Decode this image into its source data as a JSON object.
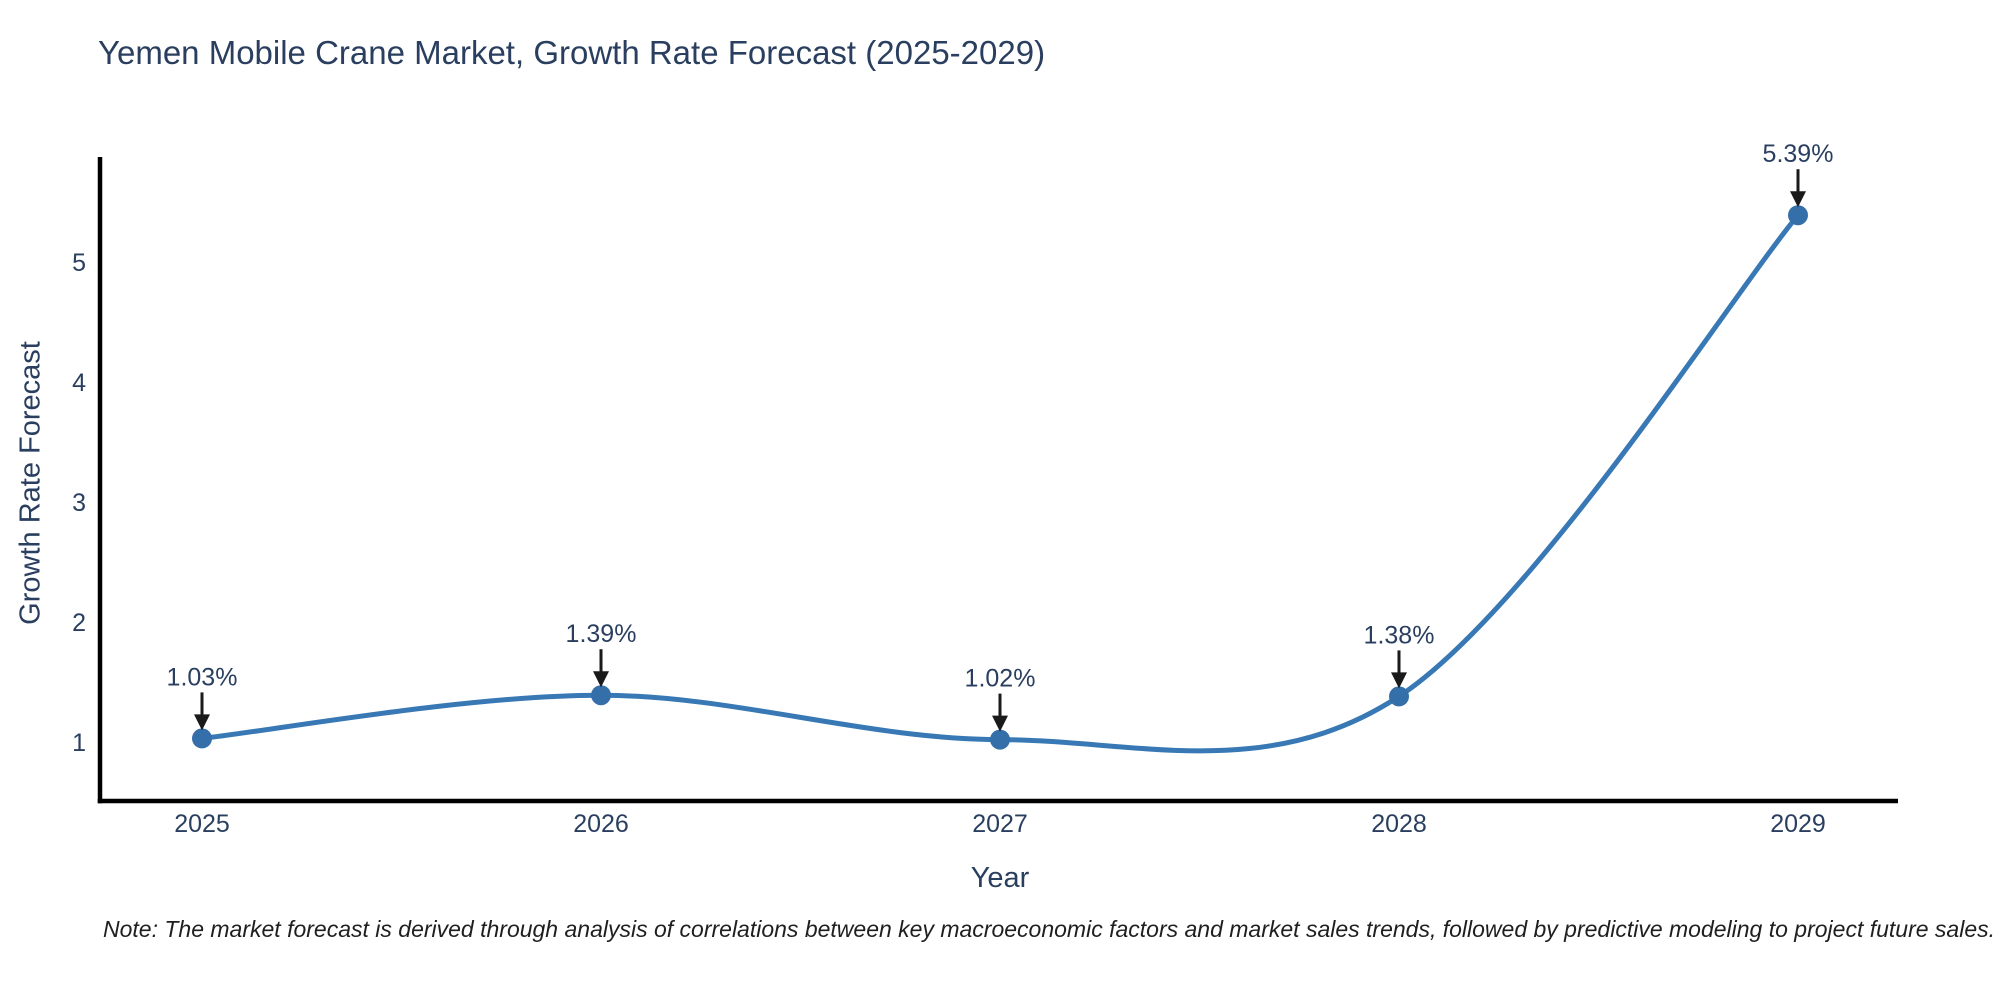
{
  "note": "Note: The market forecast is derived through analysis of correlations between key macroeconomic factors and market sales trends, followed by predictive modeling to project future sales.",
  "chart_data": {
    "type": "line",
    "title": "Yemen Mobile Crane Market, Growth Rate Forecast (2025-2029)",
    "xlabel": "Year",
    "ylabel": "Growth Rate Forecast",
    "x": [
      2025,
      2026,
      2027,
      2028,
      2029
    ],
    "series": [
      {
        "name": "Growth Rate Forecast",
        "values": [
          1.03,
          1.39,
          1.02,
          1.38,
          5.39
        ],
        "point_labels": [
          "1.03%",
          "1.39%",
          "1.02%",
          "1.38%",
          "5.39%"
        ]
      }
    ],
    "line_shape": "spline",
    "markers": true,
    "annotations_with_arrows": true,
    "yticks": [
      1,
      2,
      3,
      4,
      5
    ],
    "ylim": [
      0.5,
      5.9
    ],
    "grid": false,
    "legend": "none",
    "colors": {
      "line": "#3878b4",
      "marker": "#346fa9",
      "axis_line": "#000000",
      "text": "#2a3f5f",
      "arrow": "#1a1a1a",
      "background": "#ffffff"
    }
  }
}
